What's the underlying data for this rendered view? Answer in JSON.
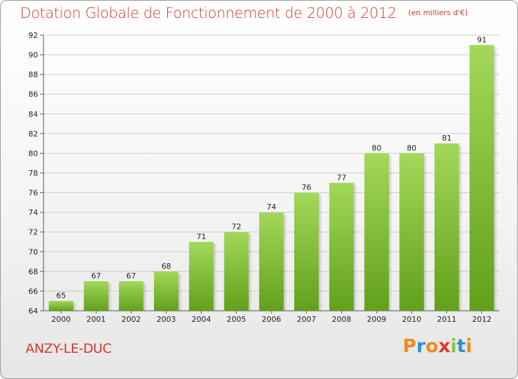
{
  "chart_data": {
    "type": "bar",
    "title": "Dotation Globale de Fonctionnement de 2000 à 2012",
    "subtitle": "(en milliers d'€)",
    "categories": [
      "2000",
      "2001",
      "2002",
      "2003",
      "2004",
      "2005",
      "2006",
      "2007",
      "2008",
      "2009",
      "2010",
      "2011",
      "2012"
    ],
    "values": [
      65,
      67,
      67,
      68,
      71,
      72,
      74,
      76,
      77,
      80,
      80,
      81,
      91
    ],
    "ylim": [
      64,
      92
    ],
    "yticks": [
      64,
      66,
      68,
      70,
      72,
      74,
      76,
      78,
      80,
      82,
      84,
      86,
      88,
      90,
      92
    ],
    "grid": true,
    "bar_color_top": "#a3d85a",
    "bar_color_bottom": "#62a01a"
  },
  "commune": "ANZY-LE-DUC",
  "logo": {
    "letters": [
      "P",
      "r",
      "o",
      "x",
      "i",
      "t",
      "i"
    ],
    "colors": [
      "#f08a1c",
      "#2f8fd6",
      "#f08a1c",
      "#e0382a",
      "#8cc63f",
      "#2f8fd6",
      "#f08a1c"
    ]
  },
  "colors": {
    "title": "#d4382a",
    "grid": "#cccccc",
    "axis": "#555555"
  }
}
